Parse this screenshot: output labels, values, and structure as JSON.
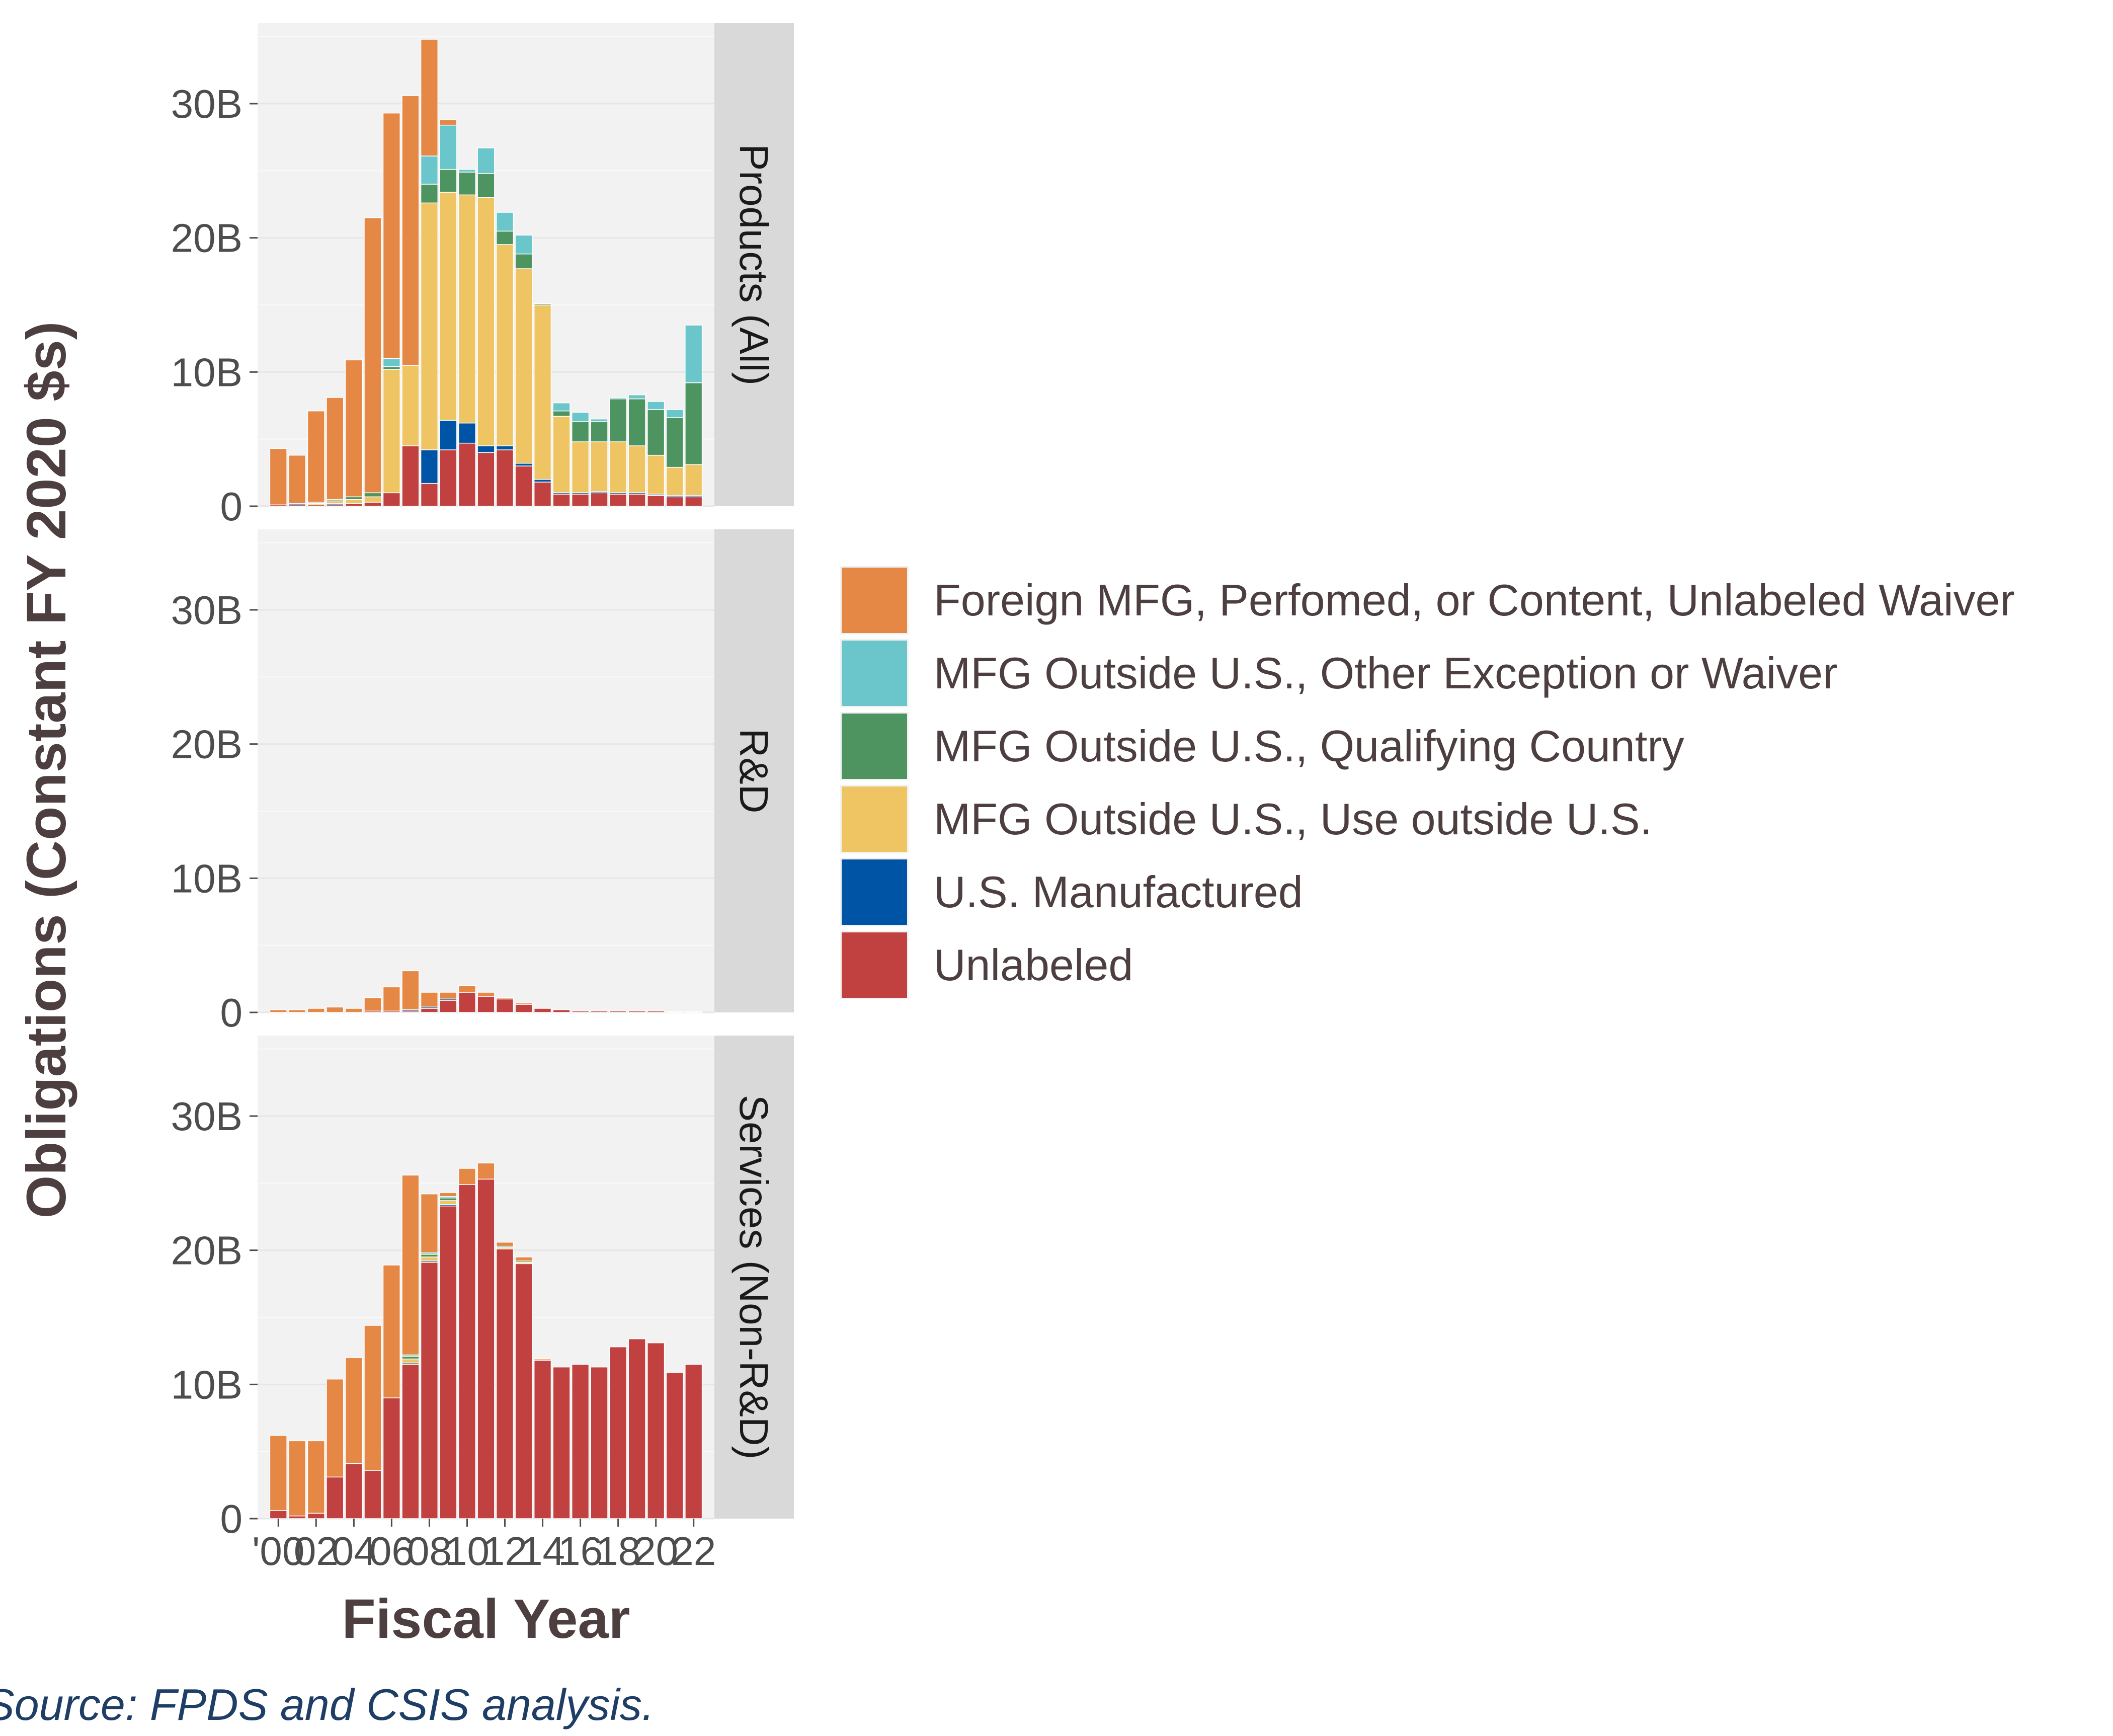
{
  "chart_data": {
    "type": "bar",
    "stacked": true,
    "faceted": true,
    "xlabel": "Fiscal Year",
    "ylabel": "Obligations (Constant FY 2020 $s)",
    "source": "Source: FPDS and CSIS analysis.",
    "ylim": [
      0,
      36000000000
    ],
    "y_ticks": [
      {
        "value": 0,
        "label": "0"
      },
      {
        "value": 10000000000,
        "label": "10B"
      },
      {
        "value": 20000000000,
        "label": "20B"
      },
      {
        "value": 30000000000,
        "label": "30B"
      }
    ],
    "x": [
      2000,
      2001,
      2002,
      2003,
      2004,
      2005,
      2006,
      2007,
      2008,
      2009,
      2010,
      2011,
      2012,
      2013,
      2014,
      2015,
      2016,
      2017,
      2018,
      2019,
      2020,
      2021,
      2022
    ],
    "x_tick_labels": [
      {
        "x": 2000,
        "label": "'00"
      },
      {
        "x": 2002,
        "label": "02"
      },
      {
        "x": 2004,
        "label": "04"
      },
      {
        "x": 2006,
        "label": "06"
      },
      {
        "x": 2008,
        "label": "08"
      },
      {
        "x": 2010,
        "label": "10"
      },
      {
        "x": 2012,
        "label": "12"
      },
      {
        "x": 2014,
        "label": "14"
      },
      {
        "x": 2016,
        "label": "16"
      },
      {
        "x": 2018,
        "label": "18"
      },
      {
        "x": 2020,
        "label": "20"
      },
      {
        "x": 2022,
        "label": "22"
      }
    ],
    "grid": true,
    "legend_position": "right",
    "legend": [
      {
        "name": "Foreign MFG, Perfomed, or Content, Unlabeled Waiver",
        "color": "#E58846"
      },
      {
        "name": "MFG Outside U.S., Other Exception or Waiver",
        "color": "#6AC6CA"
      },
      {
        "name": "MFG Outside U.S., Qualifying Country",
        "color": "#4E9461"
      },
      {
        "name": "MFG Outside U.S., Use outside U.S.",
        "color": "#EFC563"
      },
      {
        "name": "U.S. Manufactured",
        "color": "#0054A6"
      },
      {
        "name": "Unlabeled",
        "color": "#C0413F"
      }
    ],
    "panels": [
      {
        "strip": "Products (All)",
        "series": [
          {
            "name": "Unlabeled",
            "values": [
              0.1,
              0.1,
              0.1,
              0.1,
              0.2,
              0.3,
              1.0,
              4.5,
              1.7,
              4.2,
              4.7,
              4.0,
              4.2,
              3.0,
              1.8,
              0.9,
              0.9,
              1.0,
              0.9,
              0.9,
              0.8,
              0.7,
              0.7
            ]
          },
          {
            "name": "U.S. Manufactured",
            "values": [
              0.0,
              0.1,
              0.0,
              0.1,
              0.0,
              0.0,
              0.0,
              0.0,
              2.5,
              2.2,
              1.5,
              0.5,
              0.3,
              0.2,
              0.2,
              0.1,
              0.1,
              0.1,
              0.1,
              0.1,
              0.1,
              0.1,
              0.1
            ]
          },
          {
            "name": "MFG Outside U.S., Use outside U.S.",
            "values": [
              0.0,
              0.0,
              0.1,
              0.2,
              0.3,
              0.4,
              9.2,
              6.0,
              18.4,
              17.0,
              17.0,
              18.5,
              15.0,
              14.5,
              13.0,
              5.7,
              3.8,
              3.7,
              3.8,
              3.5,
              2.9,
              2.1,
              2.3
            ]
          },
          {
            "name": "MFG Outside U.S., Qualifying Country",
            "values": [
              0.0,
              0.0,
              0.1,
              0.1,
              0.2,
              0.3,
              0.2,
              0.0,
              1.4,
              1.7,
              1.7,
              1.8,
              1.0,
              1.1,
              0.1,
              0.4,
              1.5,
              1.5,
              3.2,
              3.5,
              3.4,
              3.7,
              6.1
            ]
          },
          {
            "name": "MFG Outside U.S., Other Exception or Waiver",
            "values": [
              0.0,
              0.0,
              0.0,
              0.0,
              0.0,
              0.0,
              0.6,
              0.0,
              2.1,
              3.3,
              0.2,
              1.9,
              1.4,
              1.4,
              0.0,
              0.6,
              0.7,
              0.2,
              0.1,
              0.3,
              0.6,
              0.6,
              4.3
            ]
          },
          {
            "name": "Foreign MFG, Perfomed, or Content, Unlabeled Waiver",
            "values": [
              4.2,
              3.6,
              6.8,
              7.6,
              10.2,
              20.5,
              18.3,
              20.1,
              8.7,
              0.4,
              0.0,
              0.0,
              0.0,
              0.0,
              0.0,
              0.0,
              0.0,
              0.0,
              0.0,
              0.0,
              0.0,
              0.0,
              0.0
            ]
          }
        ]
      },
      {
        "strip": "R&D",
        "series": [
          {
            "name": "Unlabeled",
            "values": [
              0.0,
              0.0,
              0.0,
              0.0,
              0.0,
              0.1,
              0.1,
              0.1,
              0.3,
              0.9,
              1.5,
              1.2,
              1.0,
              0.6,
              0.3,
              0.2,
              0.1,
              0.1,
              0.1,
              0.1,
              0.1,
              0.05,
              0.05
            ]
          },
          {
            "name": "U.S. Manufactured",
            "values": [
              0.0,
              0.0,
              0.0,
              0.0,
              0.0,
              0.0,
              0.0,
              0.1,
              0.1,
              0.1,
              0.0,
              0.0,
              0.0,
              0.0,
              0.0,
              0.0,
              0.0,
              0.0,
              0.0,
              0.0,
              0.0,
              0.0,
              0.0
            ]
          },
          {
            "name": "MFG Outside U.S., Use outside U.S.",
            "values": [
              0.0,
              0.0,
              0.0,
              0.0,
              0.0,
              0.0,
              0.0,
              0.0,
              0.0,
              0.0,
              0.0,
              0.0,
              0.0,
              0.0,
              0.0,
              0.0,
              0.0,
              0.0,
              0.0,
              0.0,
              0.0,
              0.0,
              0.0
            ]
          },
          {
            "name": "MFG Outside U.S., Qualifying Country",
            "values": [
              0.0,
              0.0,
              0.0,
              0.0,
              0.0,
              0.0,
              0.0,
              0.0,
              0.0,
              0.0,
              0.0,
              0.0,
              0.0,
              0.0,
              0.0,
              0.0,
              0.0,
              0.0,
              0.0,
              0.0,
              0.0,
              0.0,
              0.0
            ]
          },
          {
            "name": "MFG Outside U.S., Other Exception or Waiver",
            "values": [
              0.0,
              0.0,
              0.0,
              0.0,
              0.0,
              0.0,
              0.0,
              0.0,
              0.0,
              0.0,
              0.0,
              0.0,
              0.0,
              0.0,
              0.0,
              0.0,
              0.0,
              0.0,
              0.0,
              0.0,
              0.0,
              0.0,
              0.0
            ]
          },
          {
            "name": "Foreign MFG, Perfomed, or Content, Unlabeled Waiver",
            "values": [
              0.2,
              0.2,
              0.3,
              0.4,
              0.3,
              1.0,
              1.8,
              2.9,
              1.1,
              0.5,
              0.5,
              0.3,
              0.1,
              0.1,
              0.0,
              0.0,
              0.0,
              0.0,
              0.0,
              0.0,
              0.0,
              0.0,
              0.0
            ]
          }
        ]
      },
      {
        "strip": "Services (Non-R&D)",
        "series": [
          {
            "name": "Unlabeled",
            "values": [
              0.6,
              0.2,
              0.4,
              3.1,
              4.1,
              3.6,
              9.0,
              11.5,
              19.1,
              23.3,
              24.9,
              25.3,
              20.1,
              19.0,
              11.8,
              11.3,
              11.5,
              11.3,
              12.8,
              13.4,
              13.1,
              10.9,
              11.5
            ]
          },
          {
            "name": "U.S. Manufactured",
            "values": [
              0.0,
              0.0,
              0.0,
              0.0,
              0.0,
              0.0,
              0.0,
              0.1,
              0.1,
              0.1,
              0.0,
              0.0,
              0.0,
              0.0,
              0.0,
              0.0,
              0.0,
              0.0,
              0.0,
              0.0,
              0.0,
              0.0,
              0.0
            ]
          },
          {
            "name": "MFG Outside U.S., Use outside U.S.",
            "values": [
              0.0,
              0.0,
              0.0,
              0.0,
              0.0,
              0.0,
              0.0,
              0.3,
              0.3,
              0.3,
              0.0,
              0.0,
              0.1,
              0.1,
              0.0,
              0.0,
              0.0,
              0.0,
              0.0,
              0.0,
              0.0,
              0.0,
              0.0
            ]
          },
          {
            "name": "MFG Outside U.S., Qualifying Country",
            "values": [
              0.0,
              0.0,
              0.0,
              0.0,
              0.0,
              0.0,
              0.0,
              0.2,
              0.2,
              0.2,
              0.0,
              0.0,
              0.1,
              0.1,
              0.0,
              0.0,
              0.0,
              0.0,
              0.0,
              0.0,
              0.0,
              0.0,
              0.0
            ]
          },
          {
            "name": "MFG Outside U.S., Other Exception or Waiver",
            "values": [
              0.0,
              0.0,
              0.0,
              0.0,
              0.0,
              0.0,
              0.0,
              0.1,
              0.1,
              0.1,
              0.0,
              0.0,
              0.0,
              0.0,
              0.0,
              0.0,
              0.0,
              0.0,
              0.0,
              0.0,
              0.0,
              0.0,
              0.0
            ]
          },
          {
            "name": "Foreign MFG, Perfomed, or Content, Unlabeled Waiver",
            "values": [
              5.6,
              5.6,
              5.4,
              7.3,
              7.9,
              10.8,
              9.9,
              13.4,
              4.4,
              0.3,
              1.2,
              1.2,
              0.3,
              0.3,
              0.1,
              0.0,
              0.0,
              0.0,
              0.0,
              0.0,
              0.0,
              0.0,
              0.0
            ]
          }
        ]
      }
    ],
    "value_unit_multiplier": 1000000000
  }
}
